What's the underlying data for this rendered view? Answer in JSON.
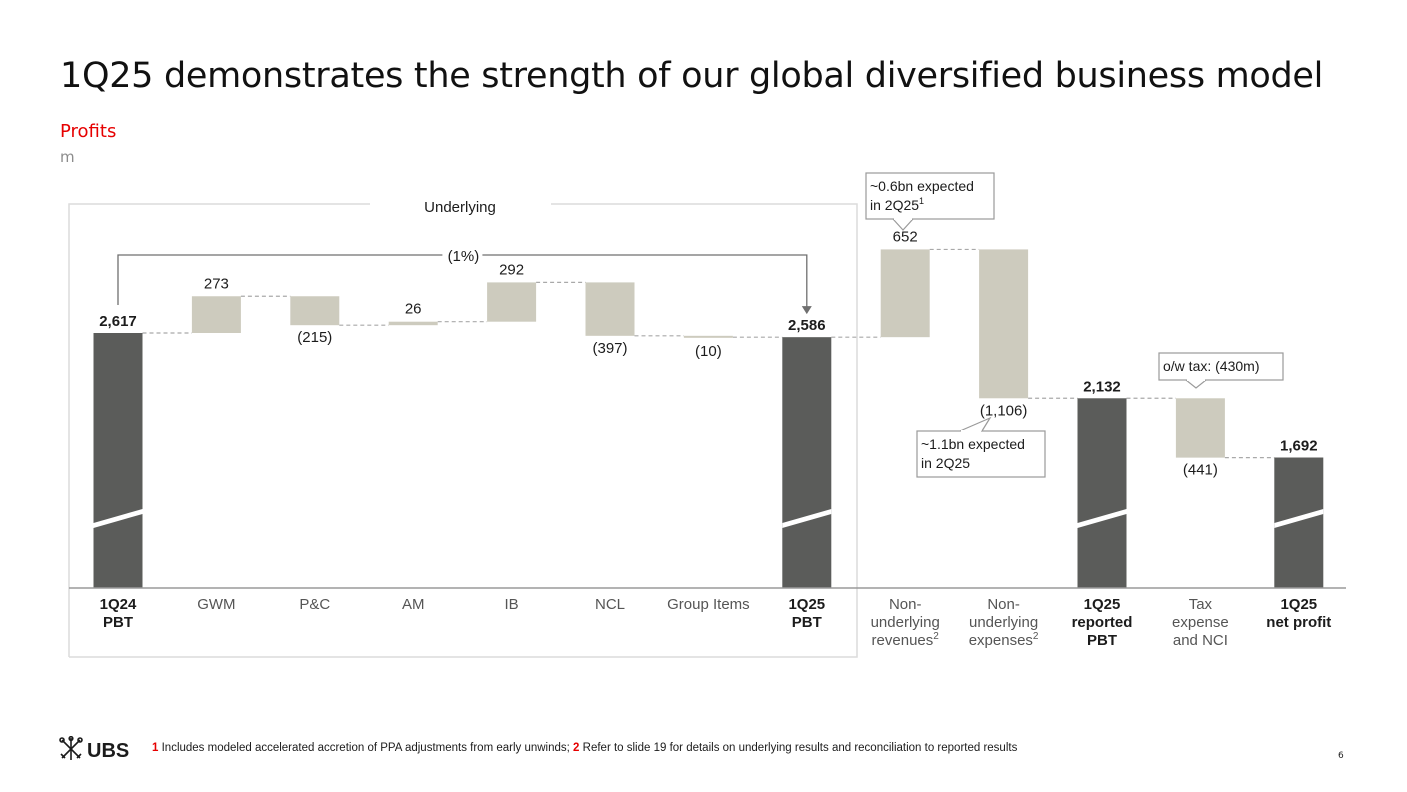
{
  "title": "1Q25 demonstrates the strength of our global diversified business model",
  "subtitle": "Profits",
  "unit": "m",
  "colors": {
    "dark": "#5b5c5a",
    "light": "#cdcbbe",
    "accent": "#e60000",
    "text": "#1c1c1c"
  },
  "chart_data": {
    "type": "waterfall",
    "categories": [
      {
        "label": [
          "1Q24",
          "PBT"
        ],
        "bold": true,
        "kind": "total",
        "value": 2617,
        "value_label": "2,617"
      },
      {
        "label": [
          "GWM"
        ],
        "bold": false,
        "kind": "delta",
        "value": 273,
        "value_label": "273"
      },
      {
        "label": [
          "P&C"
        ],
        "bold": false,
        "kind": "delta",
        "value": -215,
        "value_label": "(215)"
      },
      {
        "label": [
          "AM"
        ],
        "bold": false,
        "kind": "delta",
        "value": 26,
        "value_label": "26"
      },
      {
        "label": [
          "IB"
        ],
        "bold": false,
        "kind": "delta",
        "value": 292,
        "value_label": "292"
      },
      {
        "label": [
          "NCL"
        ],
        "bold": false,
        "kind": "delta",
        "value": -397,
        "value_label": "(397)"
      },
      {
        "label": [
          "Group Items"
        ],
        "bold": false,
        "kind": "delta",
        "value": -10,
        "value_label": "(10)"
      },
      {
        "label": [
          "1Q25",
          "PBT"
        ],
        "bold": true,
        "kind": "total",
        "value": 2586,
        "value_label": "2,586"
      },
      {
        "label": [
          "Non-",
          "underlying",
          "revenues"
        ],
        "sup": "2",
        "bold": false,
        "kind": "delta",
        "value": 652,
        "value_label": "652"
      },
      {
        "label": [
          "Non-",
          "underlying",
          "expenses"
        ],
        "sup": "2",
        "bold": false,
        "kind": "delta",
        "value": -1106,
        "value_label": "(1,106)"
      },
      {
        "label": [
          "1Q25",
          "reported",
          "PBT"
        ],
        "bold": true,
        "kind": "total",
        "value": 2132,
        "value_label": "2,132"
      },
      {
        "label": [
          "Tax",
          "expense",
          "and NCI"
        ],
        "bold": false,
        "kind": "delta",
        "value": -441,
        "value_label": "(441)"
      },
      {
        "label": [
          "1Q25",
          "net profit"
        ],
        "bold": true,
        "kind": "total",
        "value": 1692,
        "value_label": "1,692"
      }
    ],
    "axis_break": true,
    "underlying_box_label": "Underlying",
    "change_label": "(1%)",
    "callouts": [
      {
        "lines": [
          "~0.6bn expected",
          "in 2Q25"
        ],
        "sup": "1",
        "target_index": 8
      },
      {
        "lines": [
          "~1.1bn expected",
          "in 2Q25"
        ],
        "sup": "",
        "target_index": 9
      },
      {
        "lines": [
          "o/w tax: (430m)"
        ],
        "sup": "",
        "target_index": 11
      }
    ]
  },
  "footer": {
    "logo_text": "UBS",
    "note1_num": "1",
    "note1_text": " Includes modeled accelerated accretion of PPA adjustments from early unwinds; ",
    "note2_num": "2",
    "note2_text": " Refer to slide 19 for details on underlying results and reconciliation to reported results",
    "page_number": "6"
  }
}
